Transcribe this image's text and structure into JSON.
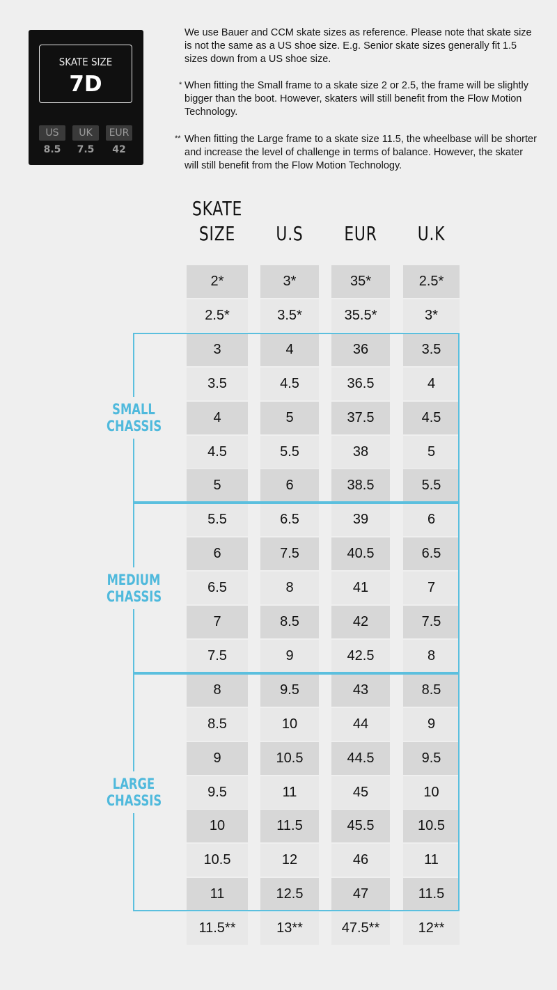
{
  "size_card": {
    "label": "SKATE SIZE",
    "value": "7D",
    "conversions": [
      {
        "system": "US",
        "value": "8.5"
      },
      {
        "system": "UK",
        "value": "7.5"
      },
      {
        "system": "EUR",
        "value": "42"
      }
    ]
  },
  "notes": {
    "intro": "We use Bauer and CCM skate sizes as reference. Please note that skate size is not the same as a US shoe size. E.g. Senior skate sizes generally fit 1.5 sizes down from a US shoe size.",
    "single_star_mark": "*",
    "single_star": "When fitting the Small frame to a skate size 2 or 2.5, the frame will be slightly bigger than the boot. However, skaters will still benefit from the Flow Motion Technology.",
    "double_star_mark": "**",
    "double_star": "When fitting the Large frame to a skate size 11.5, the wheelbase  will be shorter and increase the level of challenge in terms of balance. However, the skater will still benefit from the Flow Motion Technology."
  },
  "table": {
    "headers": [
      {
        "line1": "SKATE",
        "line2": "SIZE"
      },
      {
        "line1": "",
        "line2": "U.S"
      },
      {
        "line1": "",
        "line2": "EUR"
      },
      {
        "line1": "",
        "line2": "U.K"
      }
    ],
    "rows": [
      [
        "2*",
        "3*",
        "35*",
        "2.5*"
      ],
      [
        "2.5*",
        "3.5*",
        "35.5*",
        "3*"
      ],
      [
        "3",
        "4",
        "36",
        "3.5"
      ],
      [
        "3.5",
        "4.5",
        "36.5",
        "4"
      ],
      [
        "4",
        "5",
        "37.5",
        "4.5"
      ],
      [
        "4.5",
        "5.5",
        "38",
        "5"
      ],
      [
        "5",
        "6",
        "38.5",
        "5.5"
      ],
      [
        "5.5",
        "6.5",
        "39",
        "6"
      ],
      [
        "6",
        "7.5",
        "40.5",
        "6.5"
      ],
      [
        "6.5",
        "8",
        "41",
        "7"
      ],
      [
        "7",
        "8.5",
        "42",
        "7.5"
      ],
      [
        "7.5",
        "9",
        "42.5",
        "8"
      ],
      [
        "8",
        "9.5",
        "43",
        "8.5"
      ],
      [
        "8.5",
        "10",
        "44",
        "9"
      ],
      [
        "9",
        "10.5",
        "44.5",
        "9.5"
      ],
      [
        "9.5",
        "11",
        "45",
        "10"
      ],
      [
        "10",
        "11.5",
        "45.5",
        "10.5"
      ],
      [
        "10.5",
        "12",
        "46",
        "11"
      ],
      [
        "11",
        "12.5",
        "47",
        "11.5"
      ],
      [
        "11.5**",
        "13**",
        "47.5**",
        "12**"
      ]
    ],
    "chassis": [
      {
        "line1": "SMALL",
        "line2": "CHASSIS",
        "first_row": 2,
        "last_row": 6
      },
      {
        "line1": "MEDIUM",
        "line2": "CHASSIS",
        "first_row": 7,
        "last_row": 11
      },
      {
        "line1": "LARGE",
        "line2": "CHASSIS",
        "first_row": 12,
        "last_row": 18
      }
    ],
    "accent_color": "#5bbfde"
  }
}
